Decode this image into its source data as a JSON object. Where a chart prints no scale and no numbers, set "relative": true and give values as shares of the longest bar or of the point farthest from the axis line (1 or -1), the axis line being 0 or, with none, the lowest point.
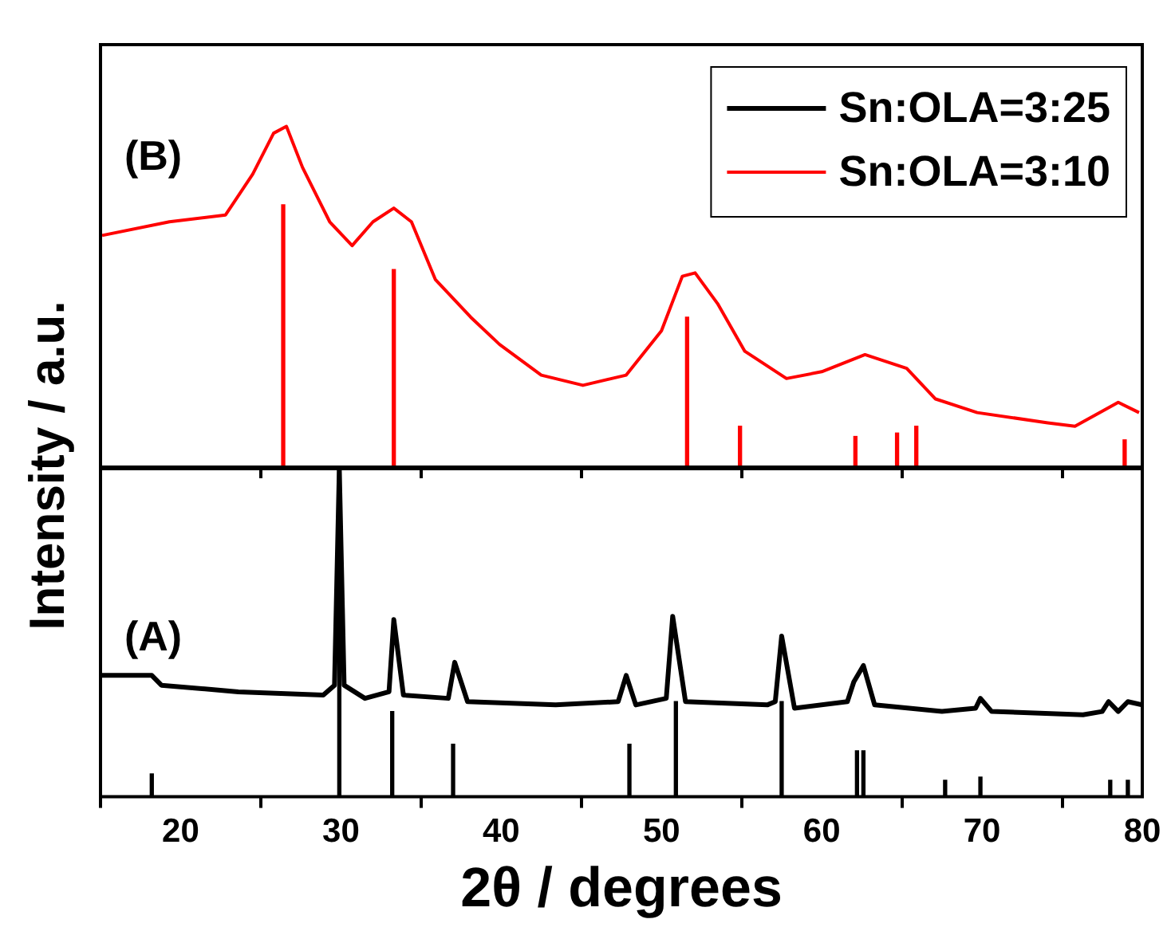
{
  "chart_data": [
    {
      "type": "line",
      "relative": true,
      "xlim": [
        15,
        80
      ],
      "xticks": [
        20,
        30,
        40,
        50,
        60,
        70,
        80
      ],
      "tick_labels": false,
      "legend": "top right",
      "ylabel": "Intensity / a.u.",
      "annotations": [
        "(B)"
      ],
      "series": [
        {
          "name": "Sn:OLA=3:10",
          "color": "#ff0000",
          "x": [
            15.1,
            19.3,
            22.8,
            24.5,
            25.8,
            26.6,
            27.6,
            29.3,
            30.7,
            32.0,
            33.3,
            34.4,
            35.9,
            38.1,
            39.9,
            42.5,
            45.1,
            47.8,
            50.0,
            51.3,
            52.1,
            53.5,
            55.2,
            57.8,
            60.0,
            62.7,
            65.3,
            67.1,
            69.7,
            74.1,
            75.8,
            78.5,
            79.8
          ],
          "values": [
            0.68,
            0.72,
            0.74,
            0.86,
            0.98,
            1,
            0.88,
            0.72,
            0.65,
            0.72,
            0.76,
            0.72,
            0.55,
            0.44,
            0.36,
            0.27,
            0.24,
            0.27,
            0.4,
            0.56,
            0.57,
            0.48,
            0.34,
            0.26,
            0.28,
            0.33,
            0.29,
            0.2,
            0.16,
            0.13,
            0.12,
            0.19,
            0.16
          ]
        },
        {
          "type": "bar",
          "color": "#ff0000",
          "x": [
            26.4,
            33.3,
            51.6,
            54.9,
            62.1,
            64.7,
            65.9,
            78.9
          ],
          "values": [
            0.77,
            0.58,
            0.44,
            0.12,
            0.09,
            0.1,
            0.12,
            0.08
          ]
        }
      ]
    },
    {
      "type": "line",
      "relative": true,
      "xlim": [
        15,
        80
      ],
      "xticks": [
        20,
        30,
        40,
        50,
        60,
        70,
        80
      ],
      "tick_labels": "x",
      "xlabel": "2θ / degrees",
      "annotations": [
        "(A)"
      ],
      "series": [
        {
          "name": "Sn:OLA=3:25",
          "color": "#000000",
          "x": [
            15.1,
            18.2,
            18.8,
            23.6,
            28.9,
            29.6,
            29.9,
            30.2,
            31.5,
            33.0,
            33.3,
            33.9,
            36.7,
            37.1,
            37.9,
            43.4,
            47.3,
            47.8,
            48.4,
            50.3,
            50.7,
            51.5,
            56.6,
            57.1,
            57.5,
            58.3,
            61.6,
            62.0,
            62.6,
            63.3,
            67.5,
            69.6,
            69.9,
            70.6,
            76.3,
            77.5,
            77.9,
            78.5,
            79.1,
            80.0
          ],
          "values": [
            0.37,
            0.37,
            0.34,
            0.32,
            0.31,
            0.34,
            1.0,
            0.34,
            0.3,
            0.32,
            0.54,
            0.31,
            0.3,
            0.41,
            0.29,
            0.28,
            0.29,
            0.37,
            0.28,
            0.3,
            0.55,
            0.29,
            0.28,
            0.29,
            0.49,
            0.27,
            0.29,
            0.35,
            0.4,
            0.28,
            0.26,
            0.27,
            0.3,
            0.26,
            0.25,
            0.26,
            0.29,
            0.26,
            0.29,
            0.28
          ]
        },
        {
          "type": "bar",
          "color": "#000000",
          "x": [
            18.2,
            29.9,
            33.2,
            37.0,
            48.0,
            50.9,
            57.5,
            62.2,
            62.6,
            67.7,
            69.9,
            78.0,
            79.1
          ],
          "values": [
            0.07,
            1.0,
            0.26,
            0.16,
            0.16,
            0.29,
            0.29,
            0.14,
            0.14,
            0.05,
            0.06,
            0.05,
            0.05
          ]
        }
      ]
    }
  ]
}
